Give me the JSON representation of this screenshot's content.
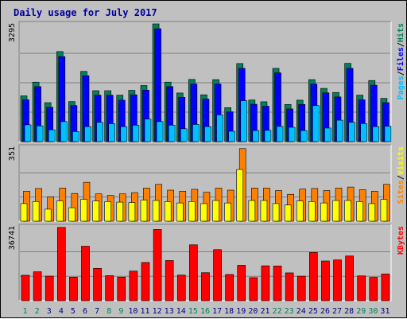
{
  "chart_data": {
    "type": "bar",
    "title": "Daily usage for July 2017",
    "categories": [
      "1",
      "2",
      "3",
      "4",
      "5",
      "6",
      "7",
      "8",
      "9",
      "10",
      "11",
      "12",
      "13",
      "14",
      "15",
      "16",
      "17",
      "18",
      "19",
      "20",
      "21",
      "22",
      "23",
      "24",
      "25",
      "26",
      "27",
      "28",
      "29",
      "30",
      "31"
    ],
    "weekend_days": [
      "1",
      "2",
      "8",
      "9",
      "15",
      "16",
      "22",
      "23",
      "29",
      "30"
    ],
    "colors": {
      "hits": "#00805c",
      "files": "#0000ff",
      "pages": "#00c0ff",
      "visits": "#ff8000",
      "sites": "#ffff00",
      "kbytes": "#ff0000",
      "title": "#0000a0",
      "weekend_label": "#00805c",
      "weekday_label": "#000080"
    },
    "panels": [
      {
        "id": "hits-files-pages",
        "ymax_label": "3295",
        "ymax": 3295,
        "legend": [
          {
            "text": "Pages",
            "color": "#00c0ff"
          },
          {
            "text": "/",
            "color": "#000000"
          },
          {
            "text": "Files",
            "color": "#0000ff"
          },
          {
            "text": "/",
            "color": "#000000"
          },
          {
            "text": "Hits",
            "color": "#00805c"
          }
        ],
        "series": [
          {
            "name": "Hits",
            "color": "#00805c",
            "values": [
              1280,
              1665,
              1090,
              2520,
              1120,
              1965,
              1425,
              1425,
              1300,
              1435,
              1570,
              3295,
              1665,
              1360,
              1740,
              1310,
              1735,
              950,
              2185,
              1165,
              1115,
              2050,
              1040,
              1160,
              1735,
              1490,
              1375,
              2190,
              1300,
              1710,
              1210
            ]
          },
          {
            "name": "Files",
            "color": "#0000ff",
            "values": [
              1170,
              1540,
              960,
              2380,
              1010,
              1845,
              1300,
              1300,
              1160,
              1310,
              1440,
              3160,
              1540,
              1240,
              1610,
              1190,
              1610,
              835,
              2050,
              1045,
              990,
              1925,
              915,
              1040,
              1610,
              1365,
              1250,
              2050,
              1170,
              1580,
              1090
            ]
          },
          {
            "name": "Pages",
            "color": "#00c0ff",
            "values": [
              470,
              440,
              330,
              560,
              280,
              420,
              540,
              500,
              420,
              460,
              630,
              560,
              460,
              360,
              480,
              420,
              750,
              290,
              1145,
              310,
              315,
              425,
              400,
              310,
              1010,
              380,
              600,
              540,
              505,
              420,
              430
            ]
          }
        ]
      },
      {
        "id": "visits-sites",
        "ymax_label": "351",
        "ymax": 351,
        "legend": [
          {
            "text": "Sites",
            "color": "#ff8000"
          },
          {
            "text": "/",
            "color": "#000000"
          },
          {
            "text": "Visits",
            "color": "#ffff00"
          }
        ],
        "series": [
          {
            "name": "Visits",
            "color": "#ff8000",
            "values": [
              145,
              158,
              118,
              160,
              134,
              188,
              132,
              125,
              132,
              138,
              160,
              178,
              150,
              145,
              154,
              140,
              160,
              150,
              351,
              160,
              160,
              148,
              130,
              155,
              158,
              148,
              160,
              165,
              152,
              145,
              178
            ]
          },
          {
            "name": "Sites",
            "color": "#ffff00",
            "values": [
              85,
              95,
              58,
              98,
              65,
              105,
              98,
              95,
              92,
              90,
              102,
              100,
              95,
              88,
              95,
              85,
              100,
              88,
              250,
              100,
              100,
              85,
              78,
              98,
              95,
              88,
              100,
              100,
              95,
              85,
              105
            ]
          }
        ]
      },
      {
        "id": "kbytes",
        "ymax_label": "36741",
        "ymax": 36741,
        "legend": [
          {
            "text": "KBytes",
            "color": "#ff0000"
          }
        ],
        "series": [
          {
            "name": "KBytes",
            "color": "#ff0000",
            "values": [
              12760,
              14510,
              12340,
              36741,
              11820,
              27300,
              16220,
              12550,
              11860,
              14840,
              19160,
              35700,
              20140,
              12830,
              28000,
              14060,
              25600,
              13140,
              17760,
              11580,
              17490,
              17390,
              13970,
              12320,
              24160,
              19930,
              20430,
              22410,
              12440,
              11750,
              13390
            ]
          }
        ]
      }
    ]
  }
}
